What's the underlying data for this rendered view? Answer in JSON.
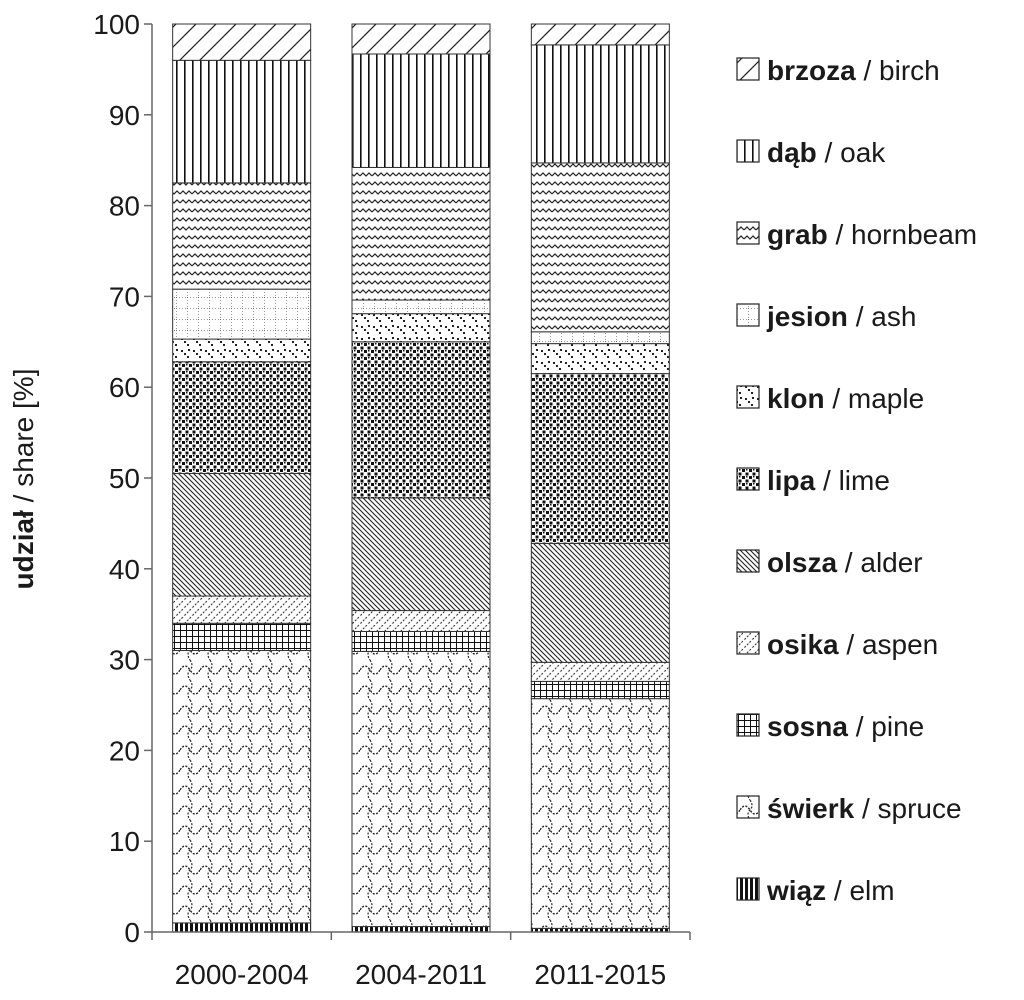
{
  "chart_data": {
    "type": "bar",
    "stacked": true,
    "categories": [
      "2000-2004",
      "2004-2011",
      "2011-2015"
    ],
    "ylabel_bold": "udział",
    "ylabel_rest": " / share [%]",
    "ylim": [
      0,
      100
    ],
    "yticks": [
      0,
      10,
      20,
      30,
      40,
      50,
      60,
      70,
      80,
      90,
      100
    ],
    "grid": false,
    "legend_position": "right",
    "series": [
      {
        "pl": "wiąz",
        "en": "elm",
        "pattern": "vbars-dense",
        "values": [
          1.0,
          0.6,
          0.4
        ]
      },
      {
        "pl": "świerk",
        "en": "spruce",
        "pattern": "waves",
        "values": [
          30.0,
          30.3,
          25.3
        ]
      },
      {
        "pl": "sosna",
        "en": "pine",
        "pattern": "grid",
        "values": [
          3.0,
          2.2,
          1.9
        ]
      },
      {
        "pl": "osika",
        "en": "aspen",
        "pattern": "diag-sparse",
        "values": [
          3.0,
          2.3,
          2.1
        ]
      },
      {
        "pl": "olsza",
        "en": "alder",
        "pattern": "diag-dense",
        "values": [
          13.5,
          12.4,
          13.1
        ]
      },
      {
        "pl": "lipa",
        "en": "lime",
        "pattern": "dots-dense",
        "values": [
          12.3,
          17.2,
          18.7
        ]
      },
      {
        "pl": "klon",
        "en": "maple",
        "pattern": "dots-sparse",
        "values": [
          2.5,
          3.1,
          3.3
        ]
      },
      {
        "pl": "jesion",
        "en": "ash",
        "pattern": "dotgrid",
        "values": [
          5.5,
          1.5,
          1.3
        ]
      },
      {
        "pl": "grab",
        "en": "hornbeam",
        "pattern": "zigzag",
        "values": [
          11.7,
          14.6,
          18.6
        ]
      },
      {
        "pl": "dąb",
        "en": "oak",
        "pattern": "vbars",
        "values": [
          13.5,
          12.5,
          13.0
        ]
      },
      {
        "pl": "brzoza",
        "en": "birch",
        "pattern": "diagcross",
        "values": [
          4.0,
          3.3,
          2.3
        ]
      }
    ]
  }
}
